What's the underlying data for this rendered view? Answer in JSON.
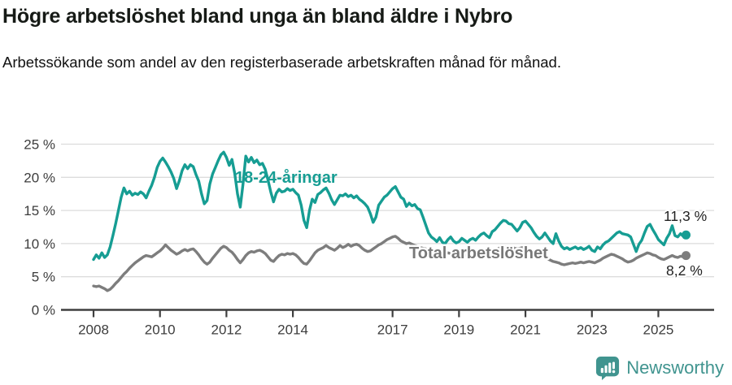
{
  "header": {
    "title": "Högre arbetslöshet bland unga än bland äldre i Nybro",
    "subtitle": "Arbetssökande som andel av den registerbaserade arbetskraften månad för månad."
  },
  "chart_data": {
    "type": "line",
    "title": "Högre arbetslöshet bland unga än bland äldre i Nybro",
    "subtitle": "Arbetssökande som andel av den registerbaserade arbetskraften månad för månad.",
    "x_unit": "monthly",
    "x_start_year": 2008,
    "x_step_months": 1,
    "x_ticks": [
      2008,
      2010,
      2012,
      2014,
      2017,
      2019,
      2021,
      2023,
      2025
    ],
    "y_ticks": [
      0,
      5,
      10,
      15,
      20,
      25
    ],
    "y_tick_suffix": " %",
    "ylim": [
      0,
      25
    ],
    "grid": true,
    "legend_position": "inline-labels",
    "series": [
      {
        "name": "18-24-åringar",
        "color": "#169d93",
        "end_label": "11,3 %",
        "end_value": 11.3,
        "values": [
          7.6,
          8.3,
          7.8,
          8.6,
          7.9,
          8.3,
          9.5,
          11.2,
          13.0,
          15.0,
          17.0,
          18.4,
          17.5,
          17.9,
          17.3,
          17.6,
          17.4,
          17.8,
          17.5,
          16.9,
          17.9,
          18.8,
          20.0,
          21.5,
          22.4,
          22.9,
          22.3,
          21.6,
          20.8,
          19.8,
          18.3,
          19.5,
          21.0,
          21.9,
          21.3,
          21.9,
          21.6,
          20.4,
          19.4,
          17.5,
          16.0,
          16.5,
          19.0,
          20.5,
          21.5,
          22.5,
          23.4,
          23.8,
          23.0,
          21.8,
          22.7,
          20.6,
          17.5,
          15.5,
          19.0,
          23.2,
          22.3,
          23.0,
          22.2,
          22.6,
          21.9,
          22.1,
          21.2,
          19.6,
          17.8,
          16.3,
          17.6,
          18.2,
          17.8,
          17.9,
          18.3,
          18.0,
          18.2,
          17.7,
          17.3,
          15.8,
          13.5,
          12.4,
          15.0,
          16.7,
          16.2,
          17.4,
          17.7,
          18.1,
          18.4,
          17.6,
          16.6,
          15.9,
          16.6,
          17.3,
          17.2,
          17.5,
          17.1,
          17.3,
          16.9,
          17.2,
          16.7,
          16.4,
          16.0,
          15.5,
          14.5,
          13.2,
          14.0,
          15.8,
          16.4,
          17.0,
          17.3,
          17.8,
          18.3,
          18.6,
          17.8,
          17.0,
          16.7,
          15.6,
          16.1,
          15.7,
          15.9,
          15.3,
          15.1,
          14.0,
          12.8,
          11.6,
          11.0,
          10.7,
          10.3,
          10.9,
          10.2,
          10.0,
          10.6,
          11.0,
          10.4,
          10.1,
          10.3,
          10.8,
          10.5,
          10.2,
          10.6,
          10.8,
          10.5,
          11.0,
          11.4,
          11.6,
          11.2,
          10.9,
          11.8,
          12.1,
          12.6,
          13.1,
          13.5,
          13.4,
          13.0,
          12.9,
          12.4,
          11.9,
          12.4,
          13.2,
          13.4,
          12.9,
          12.4,
          11.7,
          11.1,
          10.7,
          11.0,
          11.6,
          11.0,
          10.4,
          10.0,
          11.5,
          10.4,
          9.6,
          9.2,
          9.4,
          9.1,
          9.3,
          9.5,
          9.2,
          9.4,
          9.1,
          9.3,
          9.6,
          9.0,
          8.8,
          9.5,
          9.2,
          9.8,
          10.2,
          10.4,
          10.8,
          11.2,
          11.6,
          11.8,
          11.5,
          11.4,
          11.3,
          11.0,
          9.9,
          8.8,
          9.9,
          10.5,
          11.6,
          12.6,
          12.9,
          12.1,
          11.4,
          10.6,
          10.2,
          9.8,
          10.8,
          11.5,
          12.7,
          11.2,
          11.0,
          11.5,
          11.1,
          11.3
        ]
      },
      {
        "name": "Total arbetslöshet",
        "color": "#7d7d7d",
        "end_label": "8,2 %",
        "end_value": 8.2,
        "values": [
          3.6,
          3.5,
          3.6,
          3.4,
          3.2,
          2.9,
          3.1,
          3.5,
          4.0,
          4.4,
          4.9,
          5.4,
          5.8,
          6.3,
          6.7,
          7.1,
          7.4,
          7.7,
          8.0,
          8.2,
          8.1,
          8.0,
          8.3,
          8.6,
          8.9,
          9.3,
          9.8,
          9.4,
          9.0,
          8.7,
          8.4,
          8.6,
          8.9,
          9.1,
          8.9,
          9.1,
          9.2,
          8.8,
          8.3,
          7.7,
          7.2,
          6.9,
          7.2,
          7.8,
          8.3,
          8.8,
          9.3,
          9.6,
          9.4,
          9.0,
          8.7,
          8.2,
          7.6,
          7.1,
          7.6,
          8.2,
          8.6,
          8.8,
          8.7,
          8.9,
          9.0,
          8.8,
          8.5,
          8.0,
          7.5,
          7.3,
          7.8,
          8.2,
          8.4,
          8.3,
          8.5,
          8.4,
          8.5,
          8.3,
          7.9,
          7.4,
          7.0,
          6.9,
          7.4,
          8.0,
          8.6,
          9.0,
          9.2,
          9.4,
          9.7,
          9.4,
          9.2,
          9.0,
          9.3,
          9.7,
          9.4,
          9.6,
          9.9,
          9.6,
          9.8,
          9.9,
          9.7,
          9.3,
          9.0,
          8.8,
          8.9,
          9.2,
          9.5,
          9.8,
          10.0,
          10.3,
          10.6,
          10.8,
          11.0,
          11.1,
          10.8,
          10.4,
          10.2,
          10.0,
          10.1,
          9.9,
          9.7,
          9.6,
          9.4,
          9.3,
          9.2,
          9.0,
          8.9,
          8.7,
          8.6,
          8.7,
          8.6,
          8.5,
          8.6,
          8.5,
          8.4,
          8.3,
          8.3,
          8.4,
          8.3,
          8.2,
          8.3,
          8.4,
          8.3,
          8.4,
          8.5,
          8.6,
          8.5,
          8.6,
          8.7,
          8.9,
          9.2,
          9.4,
          9.6,
          9.5,
          9.4,
          9.5,
          9.3,
          9.2,
          9.3,
          9.4,
          9.4,
          9.2,
          9.0,
          8.7,
          8.4,
          8.2,
          8.0,
          7.9,
          7.7,
          7.5,
          7.3,
          7.2,
          7.1,
          6.9,
          6.8,
          6.9,
          7.0,
          7.1,
          7.0,
          7.1,
          7.2,
          7.1,
          7.2,
          7.3,
          7.2,
          7.1,
          7.3,
          7.5,
          7.8,
          8.0,
          8.2,
          8.4,
          8.3,
          8.1,
          7.9,
          7.7,
          7.4,
          7.2,
          7.3,
          7.5,
          7.8,
          8.0,
          8.2,
          8.4,
          8.6,
          8.5,
          8.3,
          8.2,
          7.9,
          7.7,
          7.6,
          7.8,
          8.0,
          8.2,
          8.0,
          7.9,
          8.1,
          8.0,
          8.2
        ]
      }
    ],
    "style": {
      "grid_color": "#dcdcdc",
      "axis_color": "#3f3f3f",
      "tick_label_color": "#3d3d3d",
      "background": "#ffffff"
    }
  },
  "footer": {
    "brand": "Newsworthy",
    "brand_color": "#40948f",
    "logo_icon": "bar-chart-speech-bubble-icon"
  }
}
